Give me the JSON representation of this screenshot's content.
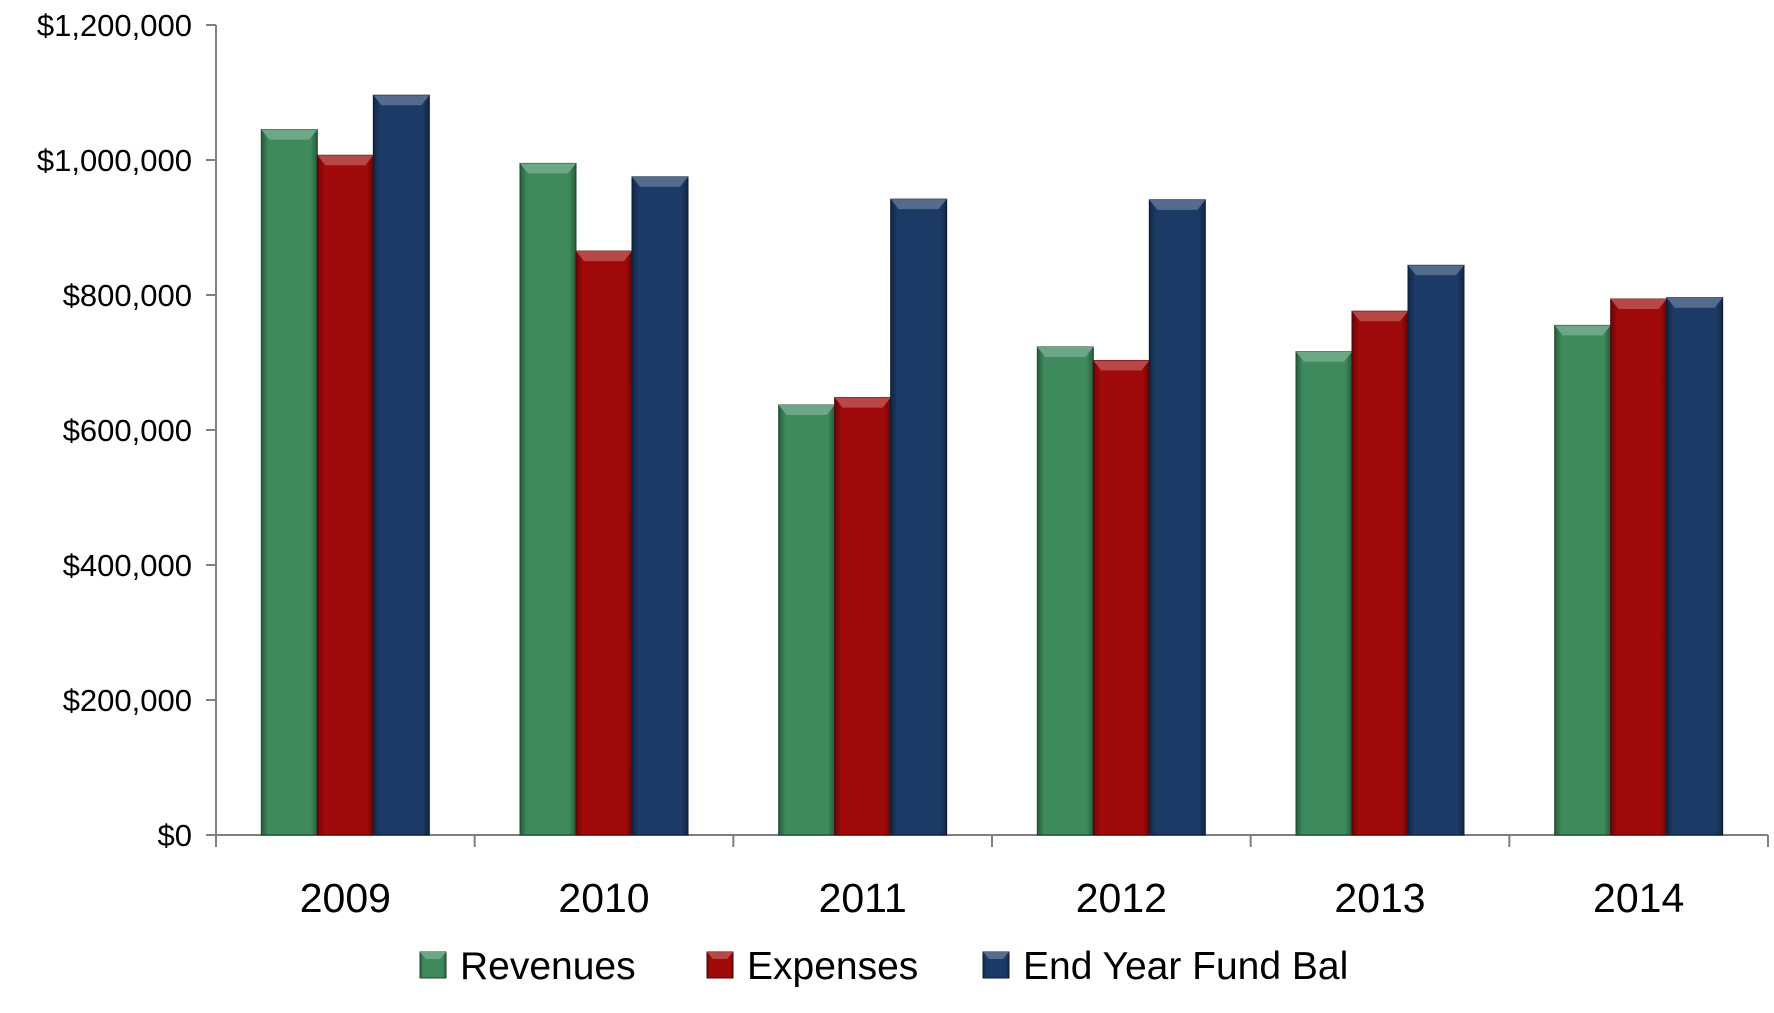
{
  "chart_data": {
    "type": "bar",
    "categories": [
      "2009",
      "2010",
      "2011",
      "2012",
      "2013",
      "2014"
    ],
    "series": [
      {
        "name": "Revenues",
        "values": [
          1045000,
          995000,
          637000,
          723000,
          716000,
          755000
        ]
      },
      {
        "name": "Expenses",
        "values": [
          1007000,
          865000,
          648000,
          703000,
          776000,
          794000
        ]
      },
      {
        "name": "End Year Fund Bal",
        "values": [
          1096000,
          975000,
          942000,
          941000,
          844000,
          796000
        ]
      }
    ],
    "ylim": [
      0,
      1200000
    ],
    "yticks": [
      0,
      200000,
      400000,
      600000,
      800000,
      1000000,
      1200000
    ],
    "ytick_labels": [
      "$0",
      "$200,000",
      "$400,000",
      "$600,000",
      "$800,000",
      "$1,000,000",
      "$1,200,000"
    ],
    "grid": false,
    "legend_position": "bottom",
    "colors": {
      "Revenues": "#3e8a5c",
      "Expenses": "#a00a0a",
      "End Year Fund Bal": "#1c3a66"
    }
  }
}
